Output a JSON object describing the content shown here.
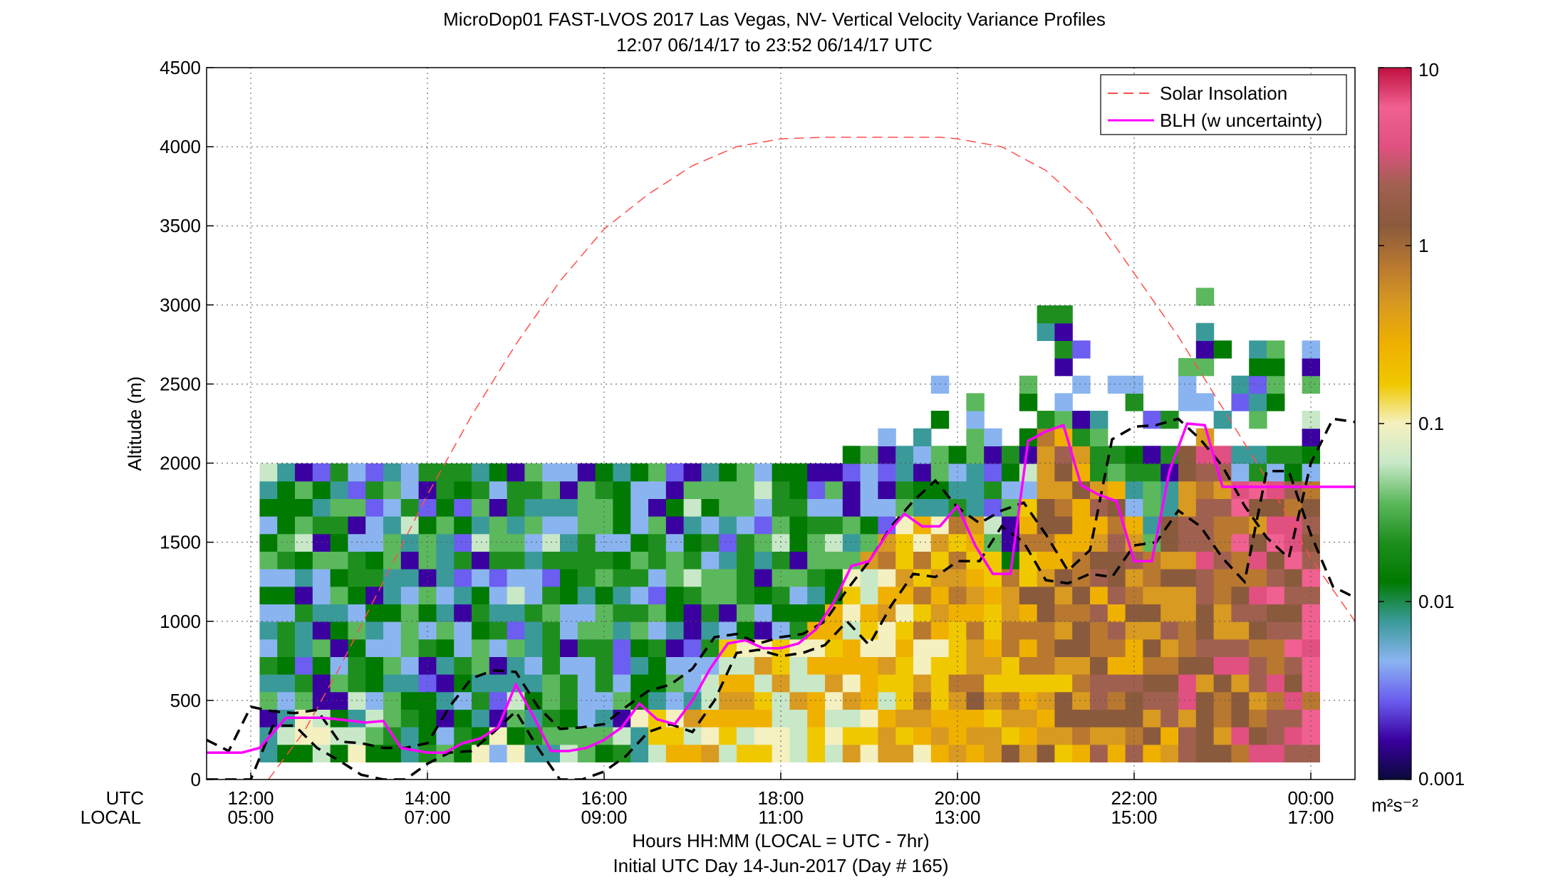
{
  "chart_data": {
    "type": "heatmap",
    "title": "MicroDop01 FAST-LVOS 2017 Las Vegas, NV- Vertical Velocity Variance Profiles",
    "subtitle": "12:07 06/14/17 to 23:52 06/14/17  UTC",
    "ylabel": "Altitude (m)",
    "xlabel": "Hours HH:MM  (LOCAL = UTC - 7hr)",
    "xlabel2": "Initial UTC Day 14-Jun-2017 (Day # 165)",
    "utc_label": "UTC",
    "local_label": "LOCAL",
    "xlim": [
      11.5,
      24.5
    ],
    "ylim": [
      0,
      4500
    ],
    "grid": true,
    "x_ticks": [
      {
        "utc": "12:00",
        "local": "05:00",
        "hour": 12
      },
      {
        "utc": "14:00",
        "local": "07:00",
        "hour": 14
      },
      {
        "utc": "16:00",
        "local": "09:00",
        "hour": 16
      },
      {
        "utc": "18:00",
        "local": "11:00",
        "hour": 18
      },
      {
        "utc": "20:00",
        "local": "13:00",
        "hour": 20
      },
      {
        "utc": "22:00",
        "local": "15:00",
        "hour": 22
      },
      {
        "utc": "00:00",
        "local": "17:00",
        "hour": 24
      }
    ],
    "y_ticks": [
      "0",
      "500",
      "1000",
      "1500",
      "2000",
      "2500",
      "3000",
      "3500",
      "4000",
      "4500"
    ],
    "colorbar": {
      "scale": "log",
      "range": [
        0.001,
        10
      ],
      "ticks": [
        "0.001",
        "0.01",
        "0.1",
        "1",
        "10"
      ],
      "units": "m²s⁻²",
      "colors": [
        "#0a0a3c",
        "#3a00a0",
        "#6b5ef0",
        "#8ab4f0",
        "#3a9a9a",
        "#007a00",
        "#1e8f1e",
        "#5cb85c",
        "#c8e8c8",
        "#f5f0c0",
        "#f0c800",
        "#f0b000",
        "#d89a20",
        "#b87830",
        "#8a5a3c",
        "#a06050",
        "#e05080",
        "#f06090",
        "#c01040"
      ]
    },
    "legend": {
      "position": "top-right",
      "entries": [
        {
          "label": "Solar Insolation",
          "color": "#ff4d4d",
          "style": "dashed"
        },
        {
          "label": "BLH (w uncertainty)",
          "color": "#ff00ff",
          "style": "solid"
        }
      ]
    },
    "series": [
      {
        "name": "BLH (w uncertainty)",
        "color": "#ff00ff",
        "x": [
          11.5,
          11.9,
          12.1,
          12.4,
          12.8,
          13.0,
          13.3,
          13.5,
          13.7,
          14.0,
          14.2,
          14.4,
          14.6,
          14.8,
          15.0,
          15.2,
          15.4,
          15.6,
          15.8,
          16.0,
          16.2,
          16.4,
          16.6,
          16.8,
          17.0,
          17.2,
          17.4,
          17.6,
          17.8,
          18.0,
          18.2,
          18.4,
          18.6,
          18.8,
          19.0,
          19.2,
          19.4,
          19.6,
          19.8,
          20.0,
          20.2,
          20.4,
          20.6,
          20.8,
          21.0,
          21.2,
          21.4,
          21.6,
          21.8,
          22.0,
          22.2,
          22.4,
          22.6,
          22.8,
          23.0,
          23.2,
          23.4,
          23.6,
          23.8,
          24.0,
          24.2,
          24.4,
          24.5
        ],
        "y": [
          170,
          170,
          200,
          390,
          390,
          380,
          360,
          370,
          200,
          170,
          170,
          230,
          260,
          330,
          600,
          400,
          180,
          180,
          200,
          250,
          330,
          480,
          380,
          350,
          500,
          700,
          860,
          880,
          830,
          830,
          860,
          950,
          1120,
          1350,
          1380,
          1550,
          1680,
          1600,
          1600,
          1730,
          1480,
          1300,
          1300,
          2140,
          2200,
          2240,
          1860,
          1800,
          1760,
          1380,
          1380,
          1950,
          2250,
          2240,
          1850,
          1850,
          1850,
          1850,
          1850,
          1850,
          1850,
          1850,
          1850
        ]
      },
      {
        "name": "",
        "color": "#000000",
        "x": [
          11.5,
          11.75,
          12.0,
          12.25,
          12.5,
          12.75,
          13.0,
          13.25,
          13.5,
          13.75,
          14.0,
          14.25,
          14.5,
          14.75,
          15.0,
          15.25,
          15.5,
          15.75,
          16.0,
          16.25,
          16.5,
          16.75,
          17.0,
          17.25,
          17.5,
          17.75,
          18.0,
          18.25,
          18.5,
          18.75,
          19.0,
          19.25,
          19.5,
          19.75,
          20.0,
          20.25,
          20.5,
          20.75,
          21.0,
          21.25,
          21.5,
          21.75,
          22.0,
          22.25,
          22.5,
          22.75,
          23.0,
          23.25,
          23.5,
          23.75,
          24.0,
          24.25,
          24.5
        ],
        "y": [
          250,
          180,
          460,
          430,
          420,
          440,
          240,
          230,
          200,
          200,
          230,
          460,
          640,
          690,
          680,
          460,
          320,
          330,
          350,
          460,
          560,
          600,
          700,
          900,
          920,
          860,
          900,
          920,
          1000,
          1200,
          1380,
          1600,
          1760,
          1890,
          1720,
          1620,
          1700,
          1750,
          1550,
          1320,
          1450,
          2150,
          2230,
          2240,
          2280,
          2150,
          1980,
          1730,
          1530,
          1400,
          2000,
          2280,
          2260
        ]
      },
      {
        "name": "",
        "color": "#000000",
        "x": [
          11.5,
          11.75,
          12.0,
          12.25,
          12.5,
          12.75,
          13.0,
          13.25,
          13.5,
          13.75,
          14.0,
          14.25,
          14.5,
          14.75,
          15.0,
          15.25,
          15.5,
          15.75,
          16.0,
          16.25,
          16.5,
          16.75,
          17.0,
          17.25,
          17.5,
          17.75,
          18.0,
          18.25,
          18.5,
          18.75,
          19.0,
          19.25,
          19.5,
          19.75,
          20.0,
          20.25,
          20.5,
          20.75,
          21.0,
          21.25,
          21.5,
          21.75,
          22.0,
          22.25,
          22.5,
          22.75,
          23.0,
          23.25,
          23.5,
          23.75,
          24.0,
          24.25,
          24.5
        ],
        "y": [
          0,
          0,
          0,
          340,
          340,
          200,
          120,
          30,
          0,
          0,
          100,
          170,
          180,
          300,
          430,
          200,
          0,
          0,
          50,
          150,
          300,
          350,
          300,
          500,
          800,
          820,
          780,
          800,
          850,
          1000,
          850,
          1100,
          1300,
          1280,
          1380,
          1380,
          1600,
          1500,
          1260,
          1240,
          1300,
          1280,
          1480,
          1500,
          1700,
          1600,
          1400,
          1250,
          1950,
          1950,
          1550,
          1220,
          1150
        ]
      },
      {
        "name": "Solar Insolation",
        "color": "#ff4d4d",
        "x": [
          12.2,
          12.6,
          13.0,
          13.5,
          14.0,
          14.5,
          15.0,
          15.5,
          16.0,
          16.5,
          17.0,
          17.5,
          18.0,
          18.5,
          19.0,
          19.5,
          19.8,
          20.0,
          20.5,
          21.0,
          21.5,
          22.0,
          22.5,
          23.0,
          23.5,
          24.0,
          24.5
        ],
        "y": [
          0,
          300,
          700,
          1250,
          1800,
          2300,
          2750,
          3150,
          3480,
          3700,
          3880,
          4000,
          4050,
          4060,
          4060,
          4060,
          4060,
          4050,
          4000,
          3850,
          3600,
          3200,
          2800,
          2350,
          1900,
          1400,
          1000
        ]
      }
    ]
  }
}
